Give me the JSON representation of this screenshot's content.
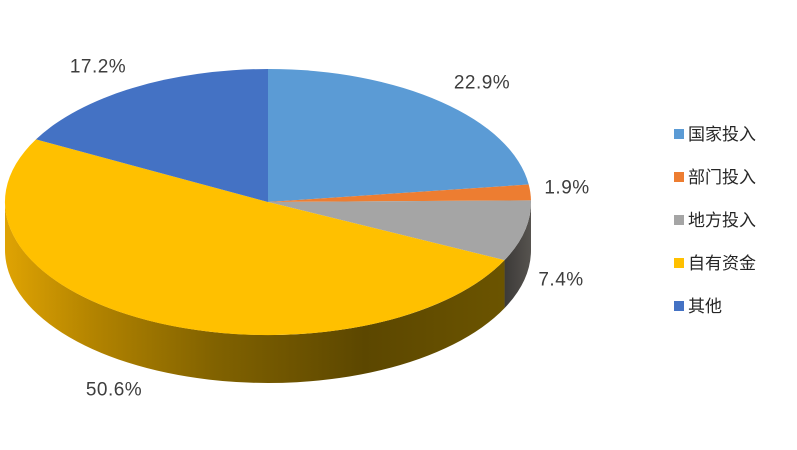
{
  "chart_data": {
    "type": "pie",
    "style": "3d",
    "direction": "clockwise",
    "start_angle_deg": 0,
    "units": "percent",
    "background": "#FFFFFF",
    "legend_position": "right",
    "slices": [
      {
        "label": "国家投入",
        "value": 22.9,
        "data_label": "22.9%",
        "color": "#5B9BD5"
      },
      {
        "label": "部门投入",
        "value": 1.9,
        "data_label": "1.9%",
        "color": "#ED7D31"
      },
      {
        "label": "地方投入",
        "value": 7.4,
        "data_label": "7.4%",
        "color": "#A5A5A5"
      },
      {
        "label": "自有资金",
        "value": 50.6,
        "data_label": "50.6%",
        "color": "#FFC000"
      },
      {
        "label": "其他",
        "value": 17.2,
        "data_label": "17.2%",
        "color": "#4472C4"
      }
    ]
  }
}
